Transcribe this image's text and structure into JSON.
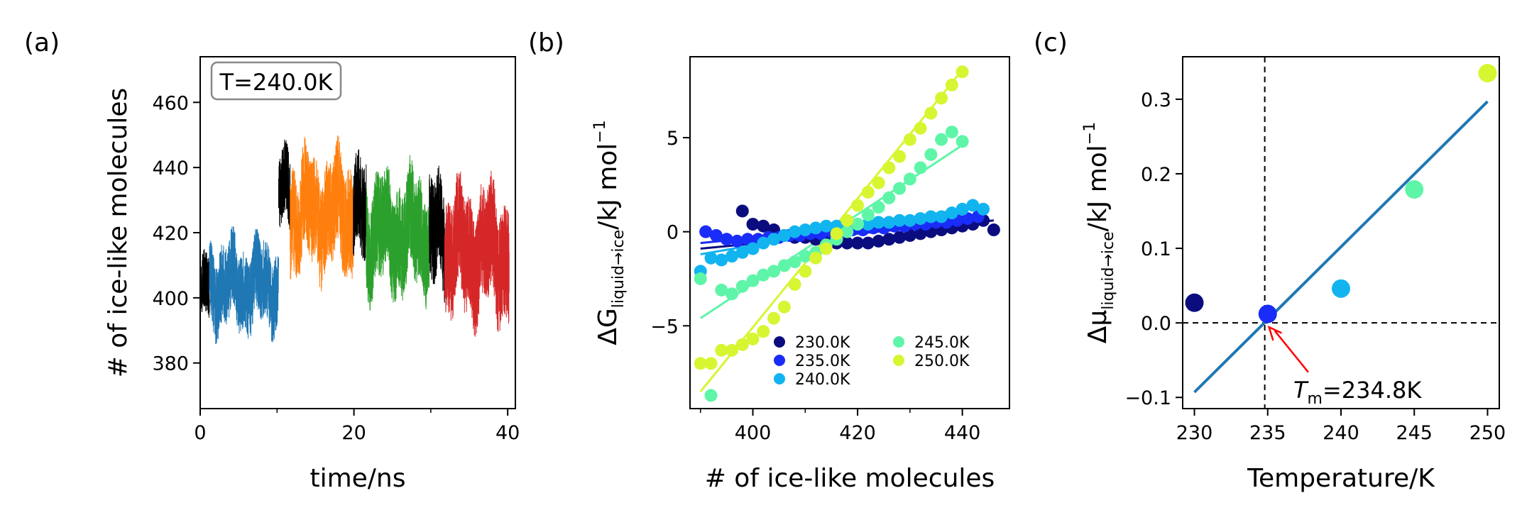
{
  "panels": [
    {
      "label": "(a)"
    },
    {
      "label": "(b)"
    },
    {
      "label": "(c)"
    }
  ],
  "chart_data": [
    {
      "type": "line",
      "panel": "(a)",
      "annotation": "T=240.0K",
      "xlabel": "time/ns",
      "ylabel": "# of ice-like molecules",
      "xlim": [
        0,
        41
      ],
      "ylim": [
        366,
        474
      ],
      "xticks": [
        0,
        20,
        40
      ],
      "yticks": [
        380,
        400,
        420,
        440,
        460
      ],
      "series": [
        {
          "color": "#000000",
          "t_range": [
            0,
            1.2
          ],
          "mean": 402,
          "amp": 12
        },
        {
          "color": "#1f77b4",
          "t_range": [
            1.2,
            10.2
          ],
          "mean": 404,
          "amp": 15
        },
        {
          "color": "#000000",
          "t_range": [
            10.2,
            11.7
          ],
          "mean": 432,
          "amp": 14
        },
        {
          "color": "#ff7f0e",
          "t_range": [
            11.7,
            19.9
          ],
          "mean": 426,
          "amp": 20
        },
        {
          "color": "#000000",
          "t_range": [
            19.9,
            21.6
          ],
          "mean": 425,
          "amp": 18
        },
        {
          "color": "#2ca02c",
          "t_range": [
            21.6,
            29.8
          ],
          "mean": 420,
          "amp": 20
        },
        {
          "color": "#000000",
          "t_range": [
            29.8,
            31.8
          ],
          "mean": 418,
          "amp": 20
        },
        {
          "color": "#d62728",
          "t_range": [
            31.8,
            40.2
          ],
          "mean": 414,
          "amp": 22
        }
      ]
    },
    {
      "type": "scatter",
      "panel": "(b)",
      "xlabel": "# of ice-like molecules",
      "ylabel_main": "ΔG",
      "ylabel_sub": "liquid→ice",
      "ylabel_unit": "/kJ mol",
      "ylabel_sup": "−1",
      "xlim": [
        388,
        449
      ],
      "ylim": [
        -9.4,
        9.3
      ],
      "xticks": [
        400,
        420,
        440
      ],
      "yticks": [
        -5,
        0,
        5
      ],
      "series": [
        {
          "name": "230.0K",
          "color": "#0b0c7e",
          "x": [
            398,
            400,
            402,
            404,
            406,
            408,
            410,
            412,
            414,
            416,
            418,
            420,
            422,
            424,
            426,
            428,
            430,
            432,
            434,
            436,
            438,
            440,
            442,
            444,
            446
          ],
          "y": [
            1.1,
            0.4,
            0.3,
            0.1,
            -0.2,
            -0.3,
            -0.3,
            -0.4,
            -0.5,
            -0.6,
            -0.6,
            -0.6,
            -0.6,
            -0.5,
            -0.4,
            -0.3,
            -0.2,
            -0.1,
            0.0,
            0.1,
            0.2,
            0.3,
            0.4,
            0.6,
            0.1
          ],
          "fit": [
            [
              390,
              -0.9
            ],
            [
              446,
              0.6
            ]
          ]
        },
        {
          "name": "235.0K",
          "color": "#1a2cf7",
          "x": [
            391,
            393,
            395,
            397,
            399,
            401,
            403,
            405,
            407,
            409,
            411,
            413,
            415,
            417,
            419,
            421,
            423,
            425,
            427,
            429,
            431,
            433,
            435,
            437,
            439,
            441,
            443
          ],
          "y": [
            0.0,
            -0.2,
            -0.4,
            -0.5,
            -0.4,
            -0.4,
            -0.3,
            -0.3,
            -0.2,
            -0.2,
            -0.1,
            -0.1,
            0.0,
            0.0,
            0.1,
            0.1,
            0.2,
            0.2,
            0.3,
            0.3,
            0.4,
            0.4,
            0.5,
            0.5,
            0.6,
            0.7,
            0.8
          ],
          "fit": [
            [
              390,
              -0.6
            ],
            [
              444,
              0.9
            ]
          ]
        },
        {
          "name": "240.0K",
          "color": "#12b4f0",
          "x": [
            390,
            392,
            394,
            396,
            398,
            400,
            402,
            404,
            406,
            408,
            410,
            412,
            414,
            416,
            418,
            420,
            422,
            424,
            426,
            428,
            430,
            432,
            434,
            436,
            438,
            440,
            442,
            444
          ],
          "y": [
            -2.1,
            -1.4,
            -1.5,
            -1.3,
            -1.1,
            -0.9,
            -0.6,
            -0.4,
            -0.2,
            0.0,
            0.1,
            0.2,
            0.3,
            0.3,
            0.3,
            0.4,
            0.4,
            0.5,
            0.5,
            0.6,
            0.6,
            0.7,
            0.8,
            0.8,
            1.0,
            1.2,
            1.4,
            1.2
          ],
          "fit": [
            [
              390,
              -1.2
            ],
            [
              444,
              1.4
            ]
          ]
        },
        {
          "name": "245.0K",
          "color": "#5ff5a8",
          "x": [
            390,
            392,
            394,
            396,
            398,
            400,
            402,
            404,
            406,
            408,
            410,
            412,
            414,
            416,
            418,
            420,
            422,
            424,
            426,
            428,
            430,
            432,
            434,
            436,
            438,
            440
          ],
          "y": [
            -2.5,
            -8.7,
            -3.1,
            -3.3,
            -2.9,
            -2.6,
            -2.3,
            -2.1,
            -1.8,
            -1.6,
            -1.3,
            -1.1,
            -0.7,
            -0.4,
            0.0,
            0.4,
            0.9,
            1.3,
            1.8,
            2.3,
            2.8,
            3.4,
            4.1,
            4.9,
            5.3,
            4.8
          ],
          "fit": [
            [
              390,
              -4.6
            ],
            [
              440,
              4.6
            ]
          ]
        },
        {
          "name": "250.0K",
          "color": "#d8f532",
          "x": [
            390,
            392,
            394,
            396,
            398,
            400,
            402,
            404,
            406,
            408,
            410,
            412,
            414,
            416,
            418,
            420,
            422,
            424,
            426,
            428,
            430,
            432,
            434,
            436,
            438,
            440
          ],
          "y": [
            -7.0,
            -7.0,
            -6.3,
            -6.3,
            -6.0,
            -5.7,
            -5.3,
            -4.6,
            -4.0,
            -2.8,
            -2.1,
            -1.4,
            -0.9,
            -0.1,
            0.6,
            1.4,
            2.1,
            2.6,
            3.4,
            4.0,
            4.9,
            5.5,
            6.3,
            7.1,
            7.8,
            8.5
          ],
          "fit": [
            [
              390,
              -8.5
            ],
            [
              440,
              8.6
            ]
          ]
        }
      ],
      "legend": {
        "position": "lower-right",
        "columns": 2
      }
    },
    {
      "type": "scatter",
      "panel": "(c)",
      "xlabel": "Temperature/K",
      "ylabel_main": "Δμ",
      "ylabel_sub": "liquid→ice",
      "ylabel_unit": "/kJ mol",
      "ylabel_sup": "−1",
      "xlim": [
        229.2,
        250.8
      ],
      "ylim": [
        -0.115,
        0.357
      ],
      "xticks": [
        230,
        235,
        240,
        245,
        250
      ],
      "yticks": [
        -0.1,
        0.0,
        0.1,
        0.2,
        0.3
      ],
      "ytick_labels": [
        "−0.1",
        "0.0",
        "0.1",
        "0.2",
        "0.3"
      ],
      "points": [
        {
          "x": 230,
          "y": 0.027,
          "color": "#0b0c7e"
        },
        {
          "x": 235,
          "y": 0.012,
          "color": "#1a2cf7"
        },
        {
          "x": 240,
          "y": 0.046,
          "color": "#12b4f0"
        },
        {
          "x": 245,
          "y": 0.179,
          "color": "#5ff5a8"
        },
        {
          "x": 250,
          "y": 0.335,
          "color": "#d8f532"
        }
      ],
      "fit": {
        "color": "#1f77b4",
        "from": [
          230,
          -0.093
        ],
        "to": [
          250,
          0.297
        ]
      },
      "vline_x": 234.8,
      "hline_y": 0,
      "annotation": {
        "main": "T",
        "sub": "m",
        "rest": "=234.8K",
        "arrow_color": "#ff0000",
        "point": [
          234.8,
          0.0
        ],
        "text_at": [
          236.8,
          -0.07
        ]
      }
    }
  ]
}
